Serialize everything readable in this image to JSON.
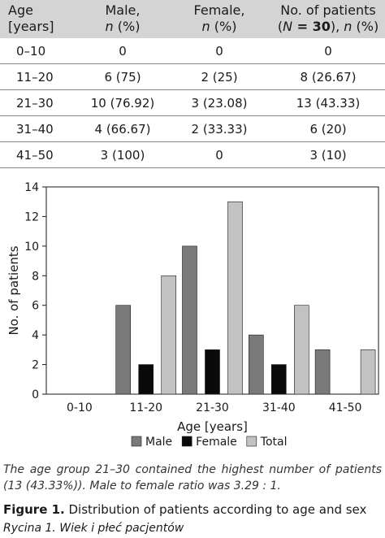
{
  "table": {
    "headers": [
      {
        "line1": "Age",
        "line2": "[years]"
      },
      {
        "line1": "Male,",
        "line2_i": "n",
        "line2_rest": " (%)"
      },
      {
        "line1": "Female,",
        "line2_i": "n",
        "line2_rest": " (%)"
      },
      {
        "line1": "No. of patients",
        "line2_pre": "(",
        "line2_i1": "N",
        "line2_b": " = 30",
        "line2_mid": "), ",
        "line2_i2": "n",
        "line2_rest": " (%)"
      }
    ],
    "rows": [
      [
        "0–10",
        "0",
        "0",
        "0"
      ],
      [
        "11–20",
        "6 (75)",
        "2 (25)",
        "8 (26.67)"
      ],
      [
        "21–30",
        "10 (76.92)",
        "3 (23.08)",
        "13 (43.33)"
      ],
      [
        "31–40",
        "4 (66.67)",
        "2 (33.33)",
        "6 (20)"
      ],
      [
        "41–50",
        "3 (100)",
        "0",
        "3 (10)"
      ]
    ]
  },
  "chart_data": {
    "type": "bar",
    "categories": [
      "0-10",
      "11-20",
      "21-30",
      "31-40",
      "41-50"
    ],
    "series": [
      {
        "name": "Male",
        "values": [
          0,
          6,
          10,
          4,
          3
        ],
        "color": "#7a7a7a"
      },
      {
        "name": "Female",
        "values": [
          0,
          2,
          3,
          2,
          0
        ],
        "color": "#0a0a0a"
      },
      {
        "name": "Total",
        "values": [
          0,
          8,
          13,
          6,
          3
        ],
        "color": "#c2c2c2"
      }
    ],
    "xlabel": "Age [years]",
    "ylabel": "No. of patients",
    "ylim": [
      0,
      14
    ],
    "yticks": [
      0,
      2,
      4,
      6,
      8,
      10,
      12,
      14
    ],
    "grid": false,
    "legend": "bottom"
  },
  "note": "The age group 21–30 contained the highest number of patients (13 (43.33%)). Male to female ratio was 3.29 : 1.",
  "figure_caption": {
    "label": "Figure 1.",
    "text": " Distribution of patients according to age and sex"
  },
  "polish_caption": "Rycina 1. Wiek i płeć pacjentów"
}
